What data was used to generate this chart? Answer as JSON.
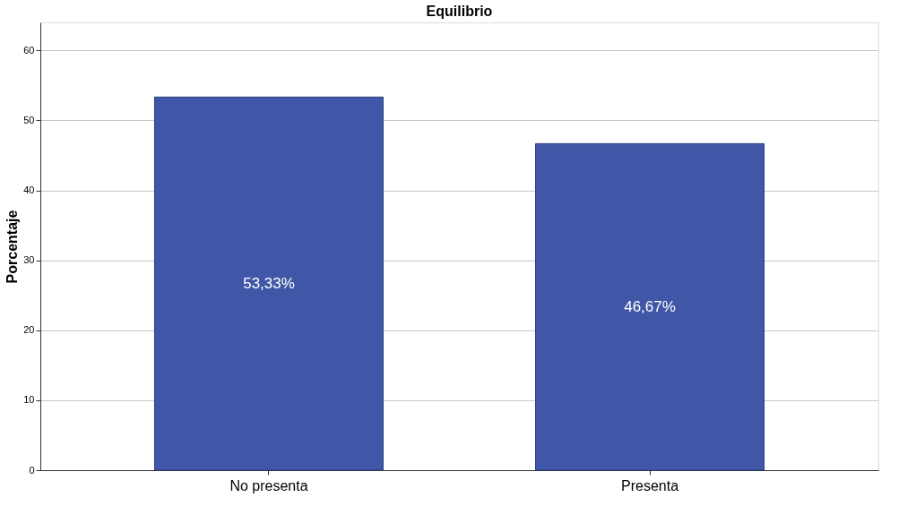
{
  "chart_data": {
    "type": "bar",
    "title": "Equilibrio",
    "ylabel": "Porcentaje",
    "categories": [
      "No presenta",
      "Presenta"
    ],
    "values": [
      53.33,
      46.67
    ],
    "value_labels": [
      "53,33%",
      "46,67%"
    ],
    "color": "#3f57a6",
    "ylim": [
      0,
      64
    ],
    "yticks": [
      0,
      10,
      20,
      30,
      40,
      50,
      60
    ],
    "grid": "y"
  }
}
